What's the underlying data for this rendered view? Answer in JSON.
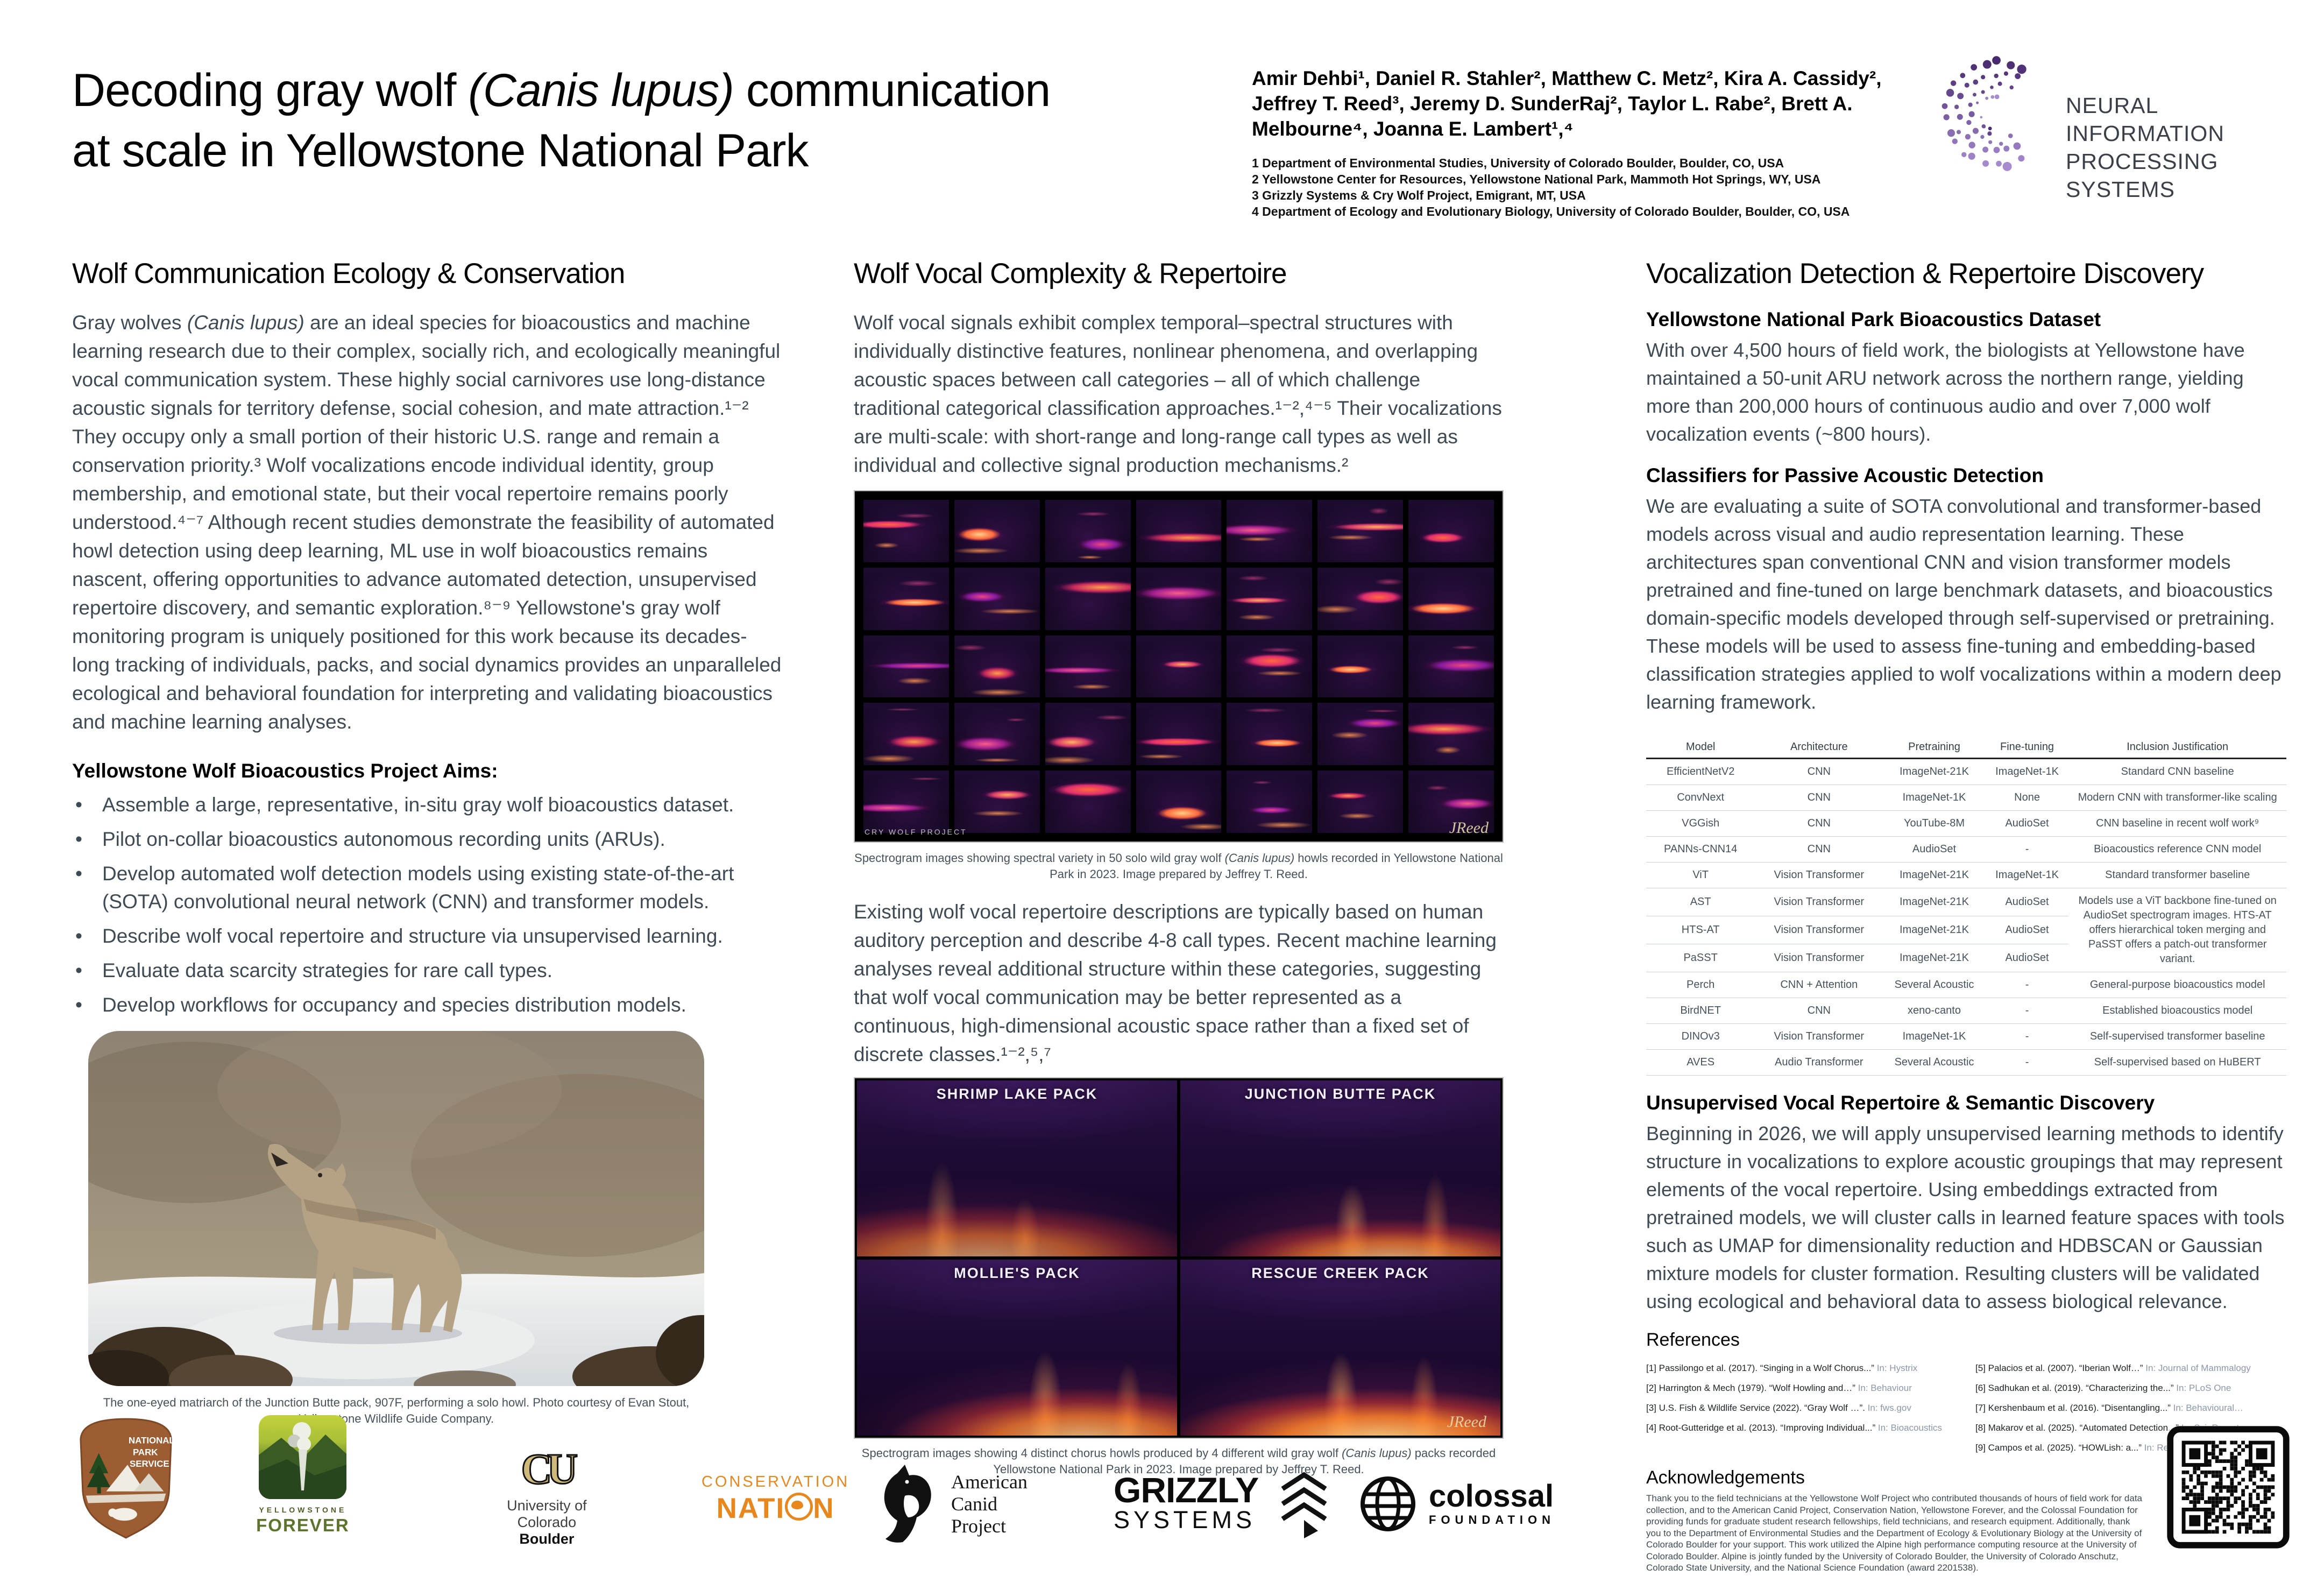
{
  "accent": {
    "body_text": "#3e4a54",
    "venue_text": "#8a97ab",
    "neurips_purple_dark": "#45276b",
    "neurips_purple_light": "#a98fd2",
    "nps_brown": "#9d5d33",
    "cn_orange": "#e8871e",
    "cu_gold": "#cfb87c"
  },
  "title": {
    "pre": "Decoding gray wolf ",
    "species": "(Canis lupus)",
    "post": " communication",
    "line2": "at scale in Yellowstone National Park"
  },
  "authors": "Amir Dehbi¹, Daniel R. Stahler², Matthew C. Metz², Kira A. Cassidy², Jeffrey T. Reed³, Jeremy D. SunderRaj², Taylor L. Rabe², Brett A. Melbourne⁴, Joanna E. Lambert¹,⁴",
  "affiliations": [
    "1 Department of Environmental Studies, University of Colorado Boulder, Boulder, CO, USA",
    "2 Yellowstone Center for Resources, Yellowstone National Park, Mammoth Hot Springs, WY, USA",
    "3 Grizzly Systems & Cry Wolf Project, Emigrant, MT, USA",
    "4 Department of Ecology and Evolutionary Biology, University of Colorado Boulder, Boulder, CO, USA"
  ],
  "neurips": {
    "line1": "NEURAL INFORMATION",
    "line2": "PROCESSING SYSTEMS"
  },
  "col1": {
    "heading": "Wolf Communication Ecology & Conservation",
    "para1_pre": "Gray wolves ",
    "para1_species": "(Canis lupus)",
    "para1_post": " are an ideal species for bioacoustics and machine learning research due to their complex, socially rich, and ecologically meaningful vocal communication system. These highly social carnivores use long-distance acoustic signals for territory defense, social cohesion, and mate attraction.¹⁻² They occupy only a small portion of their historic U.S. range and remain a conservation priority.³ Wolf vocalizations encode individual identity, group membership, and emotional state, but their vocal repertoire remains poorly understood.⁴⁻⁷ Although recent studies demonstrate the feasibility of automated howl detection using deep learning, ML use in wolf bioacoustics remains nascent, offering opportunities to advance automated detection, unsupervised repertoire discovery, and semantic exploration.⁸⁻⁹ Yellowstone's gray wolf monitoring program is uniquely positioned for this work because its decades-long tracking of individuals, packs, and social dynamics provides an unparalleled ecological and behavioral foundation for interpreting and validating bioacoustics and machine learning analyses.",
    "aims_heading": "Yellowstone Wolf Bioacoustics Project Aims:",
    "aims": [
      "Assemble a large, representative, in-situ gray wolf bioacoustics dataset.",
      "Pilot on-collar bioacoustics autonomous recording units (ARUs).",
      "Develop automated wolf detection models using existing state-of-the-art (SOTA) convolutional neural network (CNN) and transformer models.",
      "Describe wolf vocal repertoire and structure via unsupervised learning.",
      "Evaluate data scarcity strategies for rare call types.",
      "Develop workflows for occupancy and species distribution models."
    ],
    "photo_caption": "The one-eyed matriarch of the Junction Butte pack, 907F, performing a solo howl. Photo courtesy of Evan Stout, Yellowstone Wildlife Guide Company."
  },
  "col2": {
    "heading": "Wolf Vocal Complexity & Repertoire",
    "para1": "Wolf vocal signals exhibit complex temporal–spectral structures with individually distinctive features, nonlinear phenomena, and overlapping acoustic spaces between call categories – all of which challenge traditional categorical classification approaches.¹⁻²,⁴⁻⁵ Their vocalizations are multi-scale: with short-range and long-range call types as well as individual and collective signal production mechanisms.²",
    "fig1_watermark": "CRY WOLF PROJECT",
    "fig1_signature": "JReed",
    "fig1_caption_pre": "Spectrogram images showing spectral variety in 50 solo wild gray wolf ",
    "fig1_caption_species": "(Canis lupus)",
    "fig1_caption_post": " howls recorded in Yellowstone National Park in 2023. Image prepared by Jeffrey T. Reed.",
    "para2": "Existing wolf vocal repertoire descriptions are typically based on human auditory perception and describe 4-8 call types. Recent machine learning analyses reveal additional structure within these categories, suggesting that wolf vocal communication may be better represented as a continuous, high-dimensional acoustic space rather than a fixed set of discrete classes.¹⁻²,⁵,⁷",
    "fig2_labels": [
      "SHRIMP LAKE PACK",
      "JUNCTION BUTTE PACK",
      "MOLLIE'S PACK",
      "RESCUE CREEK PACK"
    ],
    "fig2_signature": "JReed",
    "fig2_caption_pre": "Spectrogram images showing 4 distinct chorus howls produced by 4 different wild gray wolf ",
    "fig2_caption_species": "(Canis lupus)",
    "fig2_caption_post": " packs recorded Yellowstone National Park in 2023. Image prepared by Jeffrey T. Reed."
  },
  "col3": {
    "heading": "Vocalization Detection & Repertoire Discovery",
    "sub1": "Yellowstone National Park Bioacoustics Dataset",
    "para1": "With over 4,500 hours of field work, the biologists at Yellowstone have maintained a 50-unit ARU network across the northern range, yielding more than 200,000 hours of continuous audio and over 7,000 wolf vocalization events (~800 hours).",
    "sub2": "Classifiers for Passive Acoustic Detection",
    "para2": "We are evaluating a suite of SOTA convolutional and transformer-based models across visual and audio representation learning. These architectures span conventional CNN and vision transformer models pretrained and fine-tuned on large benchmark datasets, and bioacoustics domain-specific models developed through self-supervised or pretraining. These models will be used to assess fine-tuning and embedding-based classification strategies applied to wolf vocalizations within a modern deep learning framework.",
    "table": {
      "headers": [
        "Model",
        "Architecture",
        "Pretraining",
        "Fine-tuning",
        "Inclusion Justification"
      ],
      "rows": [
        [
          "EfficientNetV2",
          "CNN",
          "ImageNet-21K",
          "ImageNet-1K",
          "Standard CNN baseline"
        ],
        [
          "ConvNext",
          "CNN",
          "ImageNet-1K",
          "None",
          "Modern CNN with transformer-like scaling"
        ],
        [
          "VGGish",
          "CNN",
          "YouTube-8M",
          "AudioSet",
          "CNN baseline in recent wolf work⁹"
        ],
        [
          "PANNs-CNN14",
          "CNN",
          "AudioSet",
          "-",
          "Bioacoustics reference CNN model"
        ],
        [
          "ViT",
          "Vision Transformer",
          "ImageNet-21K",
          "ImageNet-1K",
          "Standard transformer baseline"
        ],
        [
          "AST",
          "Vision Transformer",
          "ImageNet-21K",
          "AudioSet",
          "Models use a ViT backbone fine-tuned on AudioSet spectrogram images. HTS-AT offers hierarchical token merging and PaSST offers a patch-out transformer variant."
        ],
        [
          "HTS-AT",
          "Vision Transformer",
          "ImageNet-21K",
          "AudioSet",
          ""
        ],
        [
          "PaSST",
          "Vision Transformer",
          "ImageNet-21K",
          "AudioSet",
          ""
        ],
        [
          "Perch",
          "CNN + Attention",
          "Several Acoustic",
          "-",
          "General-purpose bioacoustics model"
        ],
        [
          "BirdNET",
          "CNN",
          "xeno-canto",
          "-",
          "Established bioacoustics model"
        ],
        [
          "DINOv3",
          "Vision Transformer",
          "ImageNet-1K",
          "-",
          "Self-supervised transformer baseline"
        ],
        [
          "AVES",
          "Audio Transformer",
          "Several Acoustic",
          "-",
          "Self-supervised based on HuBERT"
        ]
      ]
    },
    "sub3": "Unsupervised Vocal Repertoire & Semantic Discovery",
    "para3": "Beginning in 2026, we will apply unsupervised learning methods to identify structure in vocalizations to explore acoustic groupings that may represent elements of the vocal repertoire. Using embeddings extracted from pretrained models, we will cluster calls in learned feature spaces with tools such as UMAP for dimensionality reduction and HDBSCAN or Gaussian mixture models for cluster formation. Resulting clusters will be validated using ecological and behavioral data to assess biological relevance.",
    "refs_heading": "References",
    "refs_left": [
      {
        "text": "[1] Passilongo et al. (2017). “Singing in a Wolf Chorus...” ",
        "venue": "In: Hystrix"
      },
      {
        "text": "[2] Harrington & Mech (1979). “Wolf Howling and…” ",
        "venue": "In: Behaviour"
      },
      {
        "text": "[3] U.S. Fish & Wildlife Service (2022). “Gray Wolf …”. ",
        "venue": "In: fws.gov"
      },
      {
        "text": "[4] Root-Gutteridge et al. (2013). “Improving Individual...” ",
        "venue": "In: Bioacoustics"
      }
    ],
    "refs_right": [
      {
        "text": "[5] Palacios et al. (2007). “Iberian Wolf…” ",
        "venue": "In: Journal of Mammalogy"
      },
      {
        "text": "[6] Sadhukan et al. (2019). “Characterizing the...” ",
        "venue": "In: PLoS One"
      },
      {
        "text": "[7] Kershenbaum et al. (2016). “Disentangling...” ",
        "venue": "In: Behavioural…"
      },
      {
        "text": "[8] Makarov et al. (2025). “Automated Detection...” ",
        "venue": "In: Sci. Reports"
      },
      {
        "text": "[9] Campos et al. (2025). “HOWLish: a...” ",
        "venue": "In: Remote Sensing in.."
      }
    ],
    "ack_heading": "Acknowledgements",
    "ack_text": "Thank you to the field technicians at the Yellowstone Wolf Project who contributed thousands of hours of field work for data collection, and to the American Canid Project, Conservation Nation, Yellowstone Forever, and the Colossal Foundation for providing funds for graduate student research fellowships, field technicians, and research equipment. Additionally, thank you to the Department of Environmental Studies and the Department of Ecology & Evolutionary Biology at the University of Colorado Boulder for your support. This work utilized the Alpine high performance computing resource at the University of Colorado Boulder. Alpine is jointly funded by the University of Colorado Boulder, the University of Colorado Anschutz, Colorado State University, and the National Science Foundation (award 2201538)."
  },
  "partners": {
    "nps": {
      "l1": "NATIONAL",
      "l2": "PARK",
      "l3": "SERVICE"
    },
    "yf": {
      "l1": "YELLOWSTONE",
      "l2": "FOREVER"
    },
    "cu": {
      "glyph": "CU",
      "l1": "University of Colorado",
      "l2": "Boulder"
    },
    "cn": {
      "l1": "CONSERVATION",
      "l2a": "NATI",
      "l2b": "N"
    },
    "acp": {
      "l1": "American",
      "l2": "Canid",
      "l3": "Project"
    },
    "grizzly": {
      "l1": "GRIZZLY",
      "l2": "SYSTEMS"
    },
    "colossal": {
      "l1": "colossal",
      "l2": "FOUNDATION"
    }
  }
}
